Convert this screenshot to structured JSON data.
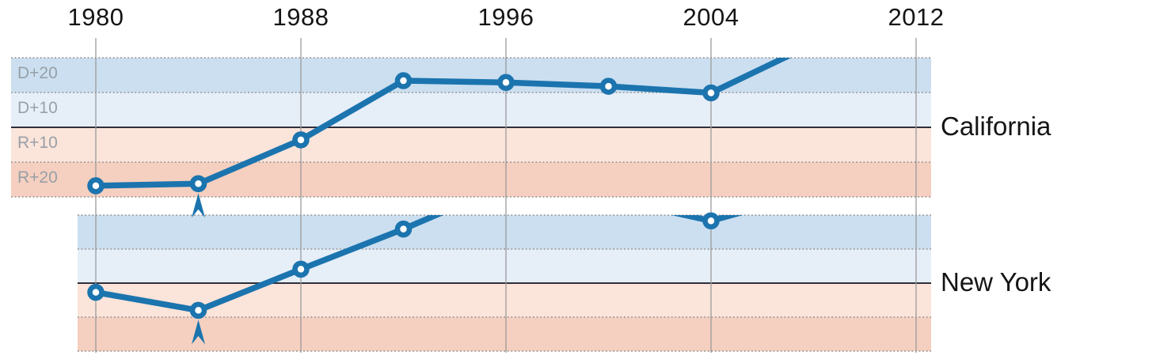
{
  "axis": {
    "tick_labels": [
      "1980",
      "1988",
      "1996",
      "2004",
      "2012"
    ]
  },
  "band_labels": [
    "D+20",
    "D+10",
    "R+10",
    "R+20"
  ],
  "panels": [
    {
      "label": "California"
    },
    {
      "label": "New York"
    }
  ],
  "chart_data": {
    "type": "line",
    "x": [
      1980,
      1984,
      1988,
      1992,
      1996,
      2000,
      2004,
      2008,
      2012
    ],
    "x_tick_labels": [
      1980,
      1988,
      1996,
      2004,
      2012
    ],
    "ylim": [
      -20,
      20
    ],
    "clip_values_to_ylim": true,
    "series": [
      {
        "name": "California",
        "values": [
          -16.8,
          -16.2,
          -3.6,
          13.4,
          12.9,
          11.8,
          9.9,
          24.0,
          23.1
        ]
      },
      {
        "name": "New York",
        "values": [
          -2.7,
          -8.0,
          4.1,
          15.9,
          28.8,
          25.0,
          18.3,
          26.7,
          28.2
        ]
      }
    ],
    "bands": [
      {
        "label": "D+20",
        "from": 10,
        "to": 20,
        "color": "#cbdff0"
      },
      {
        "label": "D+10",
        "from": 0,
        "to": 10,
        "color": "#e6eef8"
      },
      {
        "label": "R+10",
        "from": -10,
        "to": 0,
        "color": "#fbe4da"
      },
      {
        "label": "R+20",
        "from": -20,
        "to": -10,
        "color": "#f5cfbf"
      }
    ],
    "annotations": [
      {
        "panel": "California",
        "x": 1984,
        "type": "up-arrow-marker"
      },
      {
        "panel": "New York",
        "x": 1984,
        "type": "up-arrow-marker"
      }
    ],
    "marker": "open-circle",
    "grid": "vertical lines at labeled years",
    "legend_position": "right-of-panels"
  },
  "colors": {
    "line": "#1b74ae",
    "marker_fill": "#ffffff",
    "gridline": "#9b9b9b",
    "dotted_rule": "#909090",
    "zero_line": "#2e2f3a",
    "axis_text": "#151515",
    "panel_label_text": "#151515",
    "band_label_text": "#98a0a8",
    "background": "#ffffff"
  }
}
